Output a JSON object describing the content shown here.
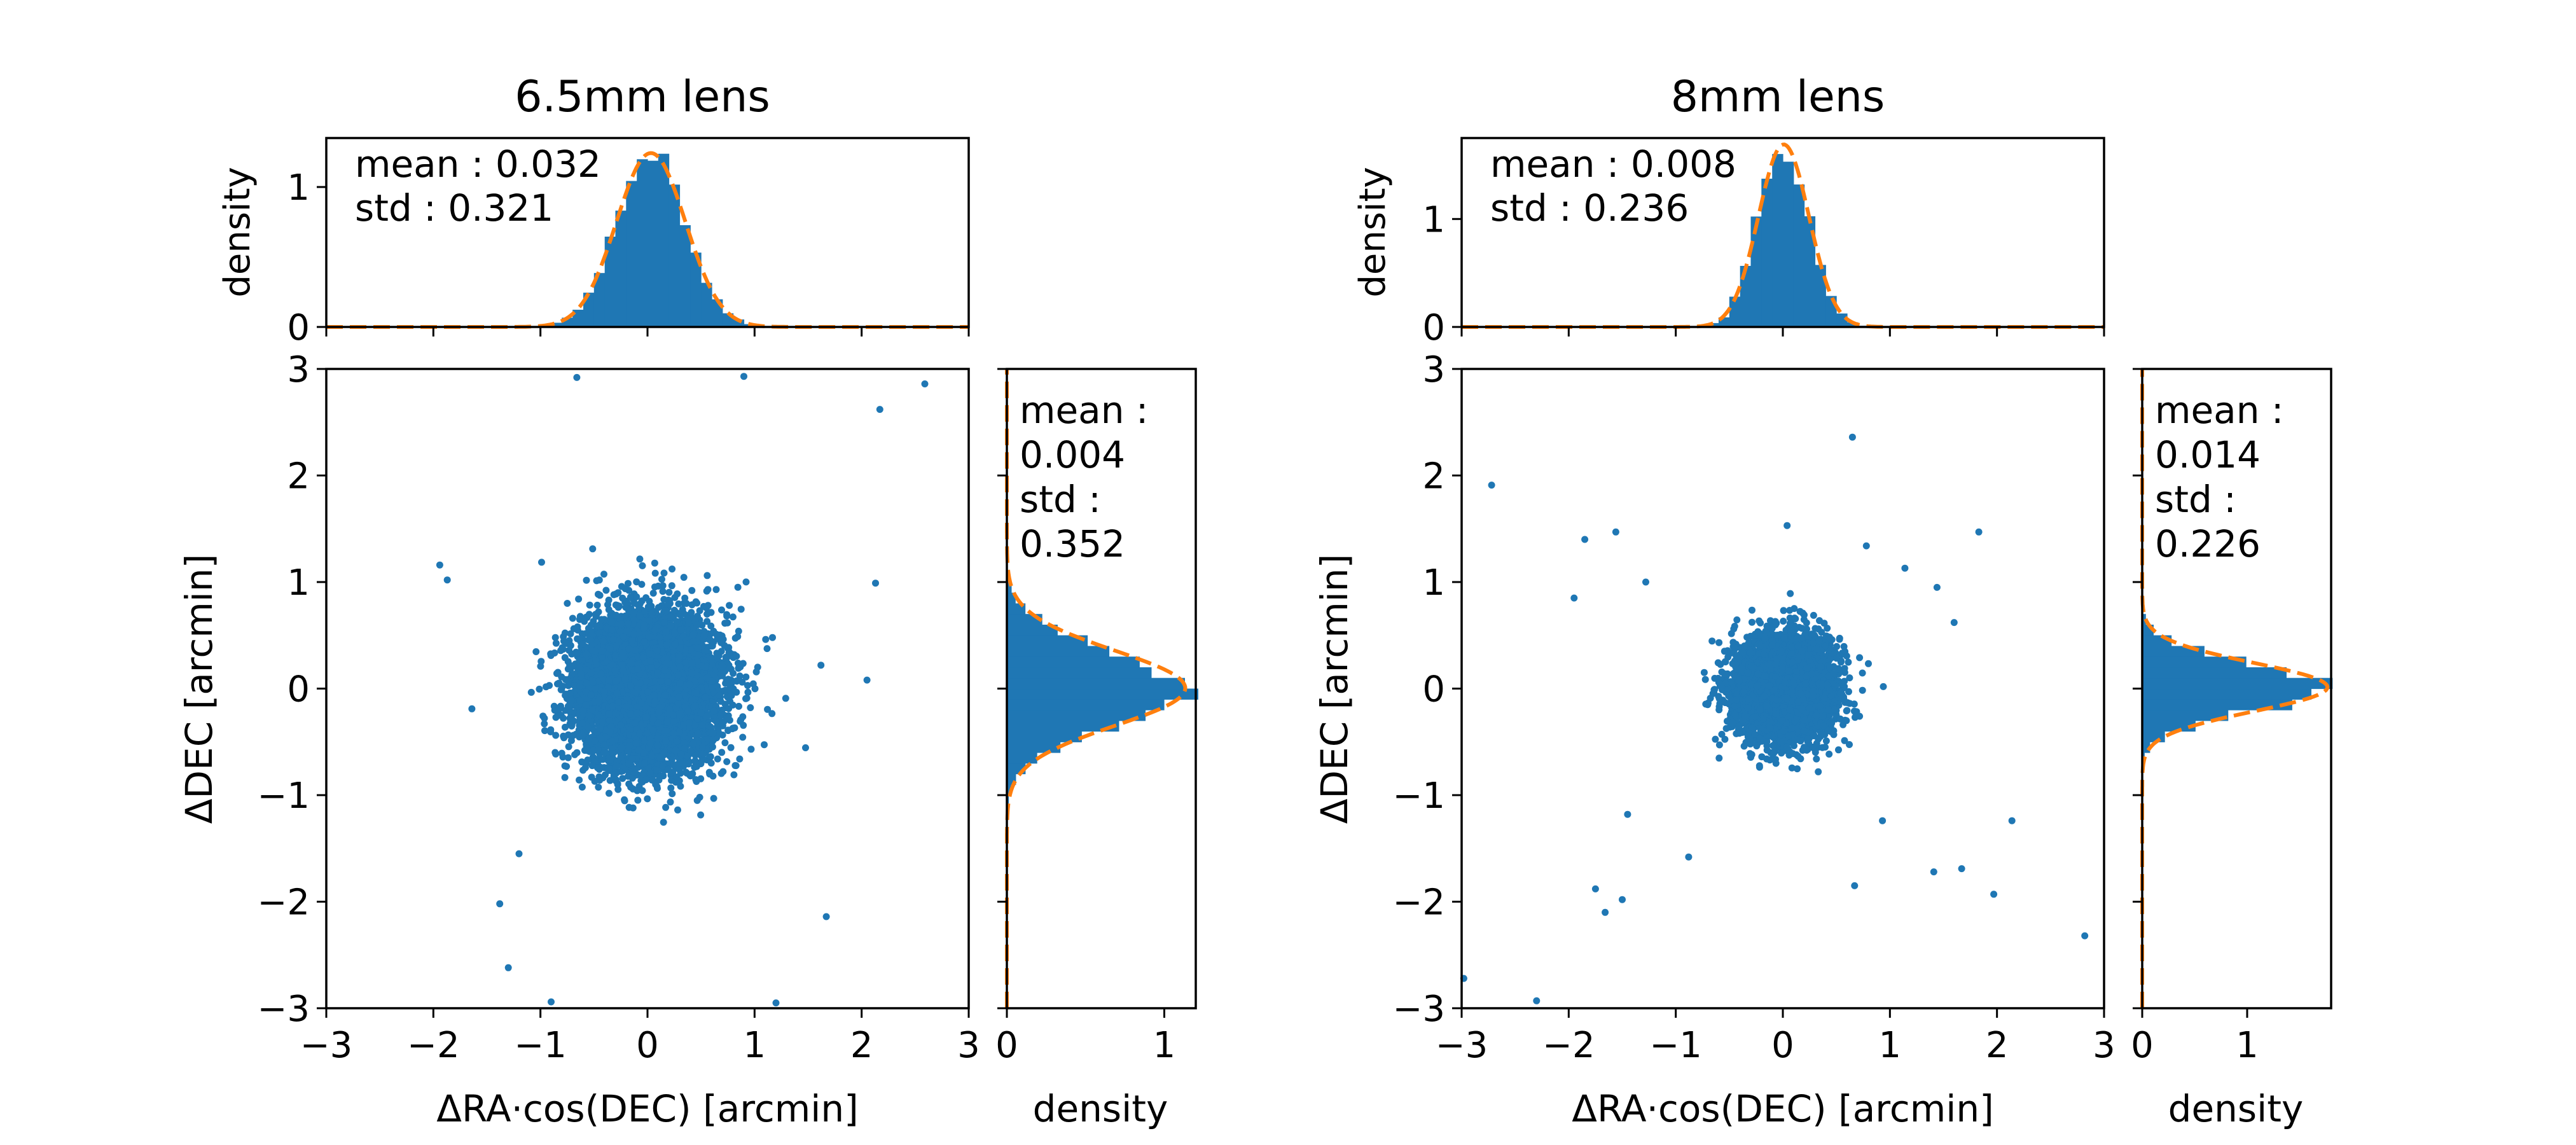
{
  "colors": {
    "hist": "#1f77b4",
    "scatter": "#1f77b4",
    "fit": "#ff7f0e"
  },
  "chart_data": [
    {
      "type": "scatter",
      "title": "6.5mm lens",
      "xlabel": "ΔRA·cos(DEC) [arcmin]",
      "ylabel": "ΔDEC [arcmin]",
      "xlim": [
        -3,
        3
      ],
      "ylim": [
        -3,
        3
      ],
      "xticks": [
        "−3",
        "−2",
        "−1",
        "0",
        "1",
        "2",
        "3"
      ],
      "yticks": [
        "−3",
        "−2",
        "−1",
        "0",
        "1",
        "2",
        "3"
      ],
      "seed": 11,
      "core_points": 7000,
      "point_std": [
        0.32,
        0.35
      ],
      "outliers": [
        [
          2.17,
          2.62
        ],
        [
          2.59,
          2.86
        ],
        [
          0.9,
          2.93
        ],
        [
          -0.66,
          2.92
        ],
        [
          2.13,
          0.99
        ],
        [
          2.05,
          0.08
        ],
        [
          1.67,
          -2.14
        ],
        [
          1.2,
          -2.95
        ],
        [
          -1.3,
          -2.62
        ],
        [
          -0.9,
          -2.94
        ],
        [
          -1.38,
          -2.02
        ],
        [
          -1.94,
          1.16
        ],
        [
          -1.87,
          1.02
        ],
        [
          -1.64,
          -0.19
        ],
        [
          1.62,
          0.22
        ],
        [
          -1.2,
          -1.55
        ]
      ],
      "top_hist": {
        "ylabel": "density",
        "ylim": [
          0,
          1.35
        ],
        "yticks": [
          "0",
          "1"
        ],
        "stats": [
          "mean : 0.032",
          "std : 0.321"
        ],
        "mean": 0.032,
        "std": 0.321
      },
      "right_hist": {
        "xlabel": "density",
        "xlim": [
          0,
          1.2
        ],
        "xticks": [
          "0",
          "1"
        ],
        "stats": [
          "mean :",
          "0.004",
          "std :",
          "0.352"
        ],
        "mean": 0.004,
        "std": 0.352
      }
    },
    {
      "type": "scatter",
      "title": "8mm lens",
      "xlabel": "ΔRA·cos(DEC) [arcmin]",
      "ylabel": "ΔDEC [arcmin]",
      "xlim": [
        -3,
        3
      ],
      "ylim": [
        -3,
        3
      ],
      "xticks": [
        "−3",
        "−2",
        "−1",
        "0",
        "1",
        "2",
        "3"
      ],
      "yticks": [
        "−3",
        "−2",
        "−1",
        "0",
        "1",
        "2",
        "3"
      ],
      "seed": 29,
      "core_points": 6000,
      "point_std": [
        0.22,
        0.22
      ],
      "outliers": [
        [
          -2.72,
          1.91
        ],
        [
          0.65,
          2.36
        ],
        [
          1.83,
          1.47
        ],
        [
          -1.85,
          1.4
        ],
        [
          -1.56,
          1.47
        ],
        [
          -1.95,
          0.85
        ],
        [
          -1.75,
          -1.88
        ],
        [
          -1.66,
          -2.1
        ],
        [
          -1.5,
          -1.98
        ],
        [
          -2.3,
          -2.93
        ],
        [
          -2.98,
          -2.72
        ],
        [
          1.97,
          -1.93
        ],
        [
          2.14,
          -1.24
        ],
        [
          2.82,
          -2.32
        ],
        [
          1.67,
          -1.69
        ],
        [
          1.41,
          -1.72
        ],
        [
          -1.45,
          -1.18
        ],
        [
          -0.88,
          -1.58
        ],
        [
          0.67,
          -1.85
        ],
        [
          0.93,
          -1.24
        ],
        [
          1.44,
          0.95
        ],
        [
          1.6,
          0.62
        ],
        [
          -1.28,
          1.0
        ],
        [
          0.04,
          1.53
        ],
        [
          0.78,
          1.34
        ],
        [
          1.14,
          1.13
        ]
      ],
      "top_hist": {
        "ylabel": "density",
        "ylim": [
          0,
          1.75
        ],
        "yticks": [
          "0",
          "1"
        ],
        "stats": [
          "mean : 0.008",
          "std : 0.236"
        ],
        "mean": 0.008,
        "std": 0.236
      },
      "right_hist": {
        "xlabel": "density",
        "xlim": [
          0,
          1.8
        ],
        "xticks": [
          "0",
          "1"
        ],
        "stats": [
          "mean :",
          "0.014",
          "std :",
          "0.226"
        ],
        "mean": 0.014,
        "std": 0.226
      }
    }
  ]
}
